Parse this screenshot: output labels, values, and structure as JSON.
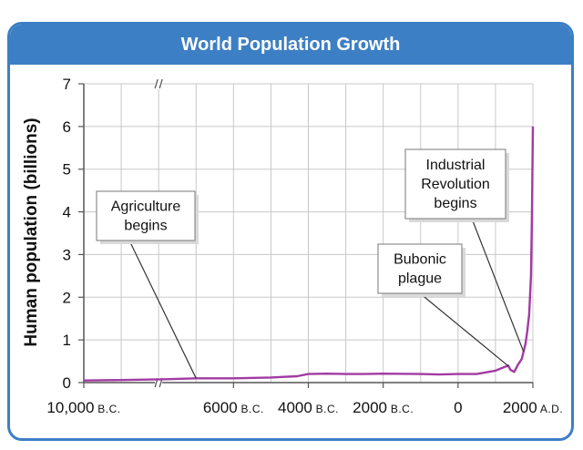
{
  "chart_data": {
    "type": "line",
    "title": "World Population Growth",
    "ylabel": "Human population (billions)",
    "xlabel": "",
    "ylim": [
      0,
      7
    ],
    "y_ticks": [
      0,
      1,
      2,
      3,
      4,
      5,
      6,
      7
    ],
    "x_ticks": [
      {
        "value": -10000,
        "label": "10,000",
        "era": "B.C."
      },
      {
        "value": -6000,
        "label": "6000",
        "era": "B.C."
      },
      {
        "value": -4000,
        "label": "4000",
        "era": "B.C."
      },
      {
        "value": -2000,
        "label": "2000",
        "era": "B.C."
      },
      {
        "value": 0,
        "label": "0",
        "era": ""
      },
      {
        "value": 2000,
        "label": "2000",
        "era": "A.D."
      }
    ],
    "grid": true,
    "axis_break_at": -8000,
    "line_color": "#a23ba3",
    "series": [
      {
        "points": [
          [
            -10000,
            0.05
          ],
          [
            -9000,
            0.06
          ],
          [
            -7800,
            0.08
          ],
          [
            -7000,
            0.1
          ],
          [
            -6000,
            0.1
          ],
          [
            -5000,
            0.12
          ],
          [
            -4300,
            0.15
          ],
          [
            -4000,
            0.2
          ],
          [
            -3500,
            0.21
          ],
          [
            -3000,
            0.2
          ],
          [
            -2500,
            0.2
          ],
          [
            -2000,
            0.21
          ],
          [
            -1000,
            0.2
          ],
          [
            -500,
            0.19
          ],
          [
            0,
            0.2
          ],
          [
            500,
            0.2
          ],
          [
            1000,
            0.28
          ],
          [
            1340,
            0.4
          ],
          [
            1400,
            0.3
          ],
          [
            1500,
            0.25
          ],
          [
            1600,
            0.42
          ],
          [
            1700,
            0.55
          ],
          [
            1800,
            0.9
          ],
          [
            1850,
            1.2
          ],
          [
            1900,
            1.6
          ],
          [
            1950,
            2.5
          ],
          [
            1975,
            4.0
          ],
          [
            2000,
            6.0
          ]
        ]
      }
    ],
    "annotations": [
      {
        "lines": [
          "Agriculture",
          "begins"
        ],
        "x": -7000
      },
      {
        "lines": [
          "Bubonic",
          "plague"
        ],
        "x": 1350
      },
      {
        "lines": [
          "Industrial",
          "Revolution",
          "begins"
        ],
        "x": 1750
      }
    ]
  }
}
